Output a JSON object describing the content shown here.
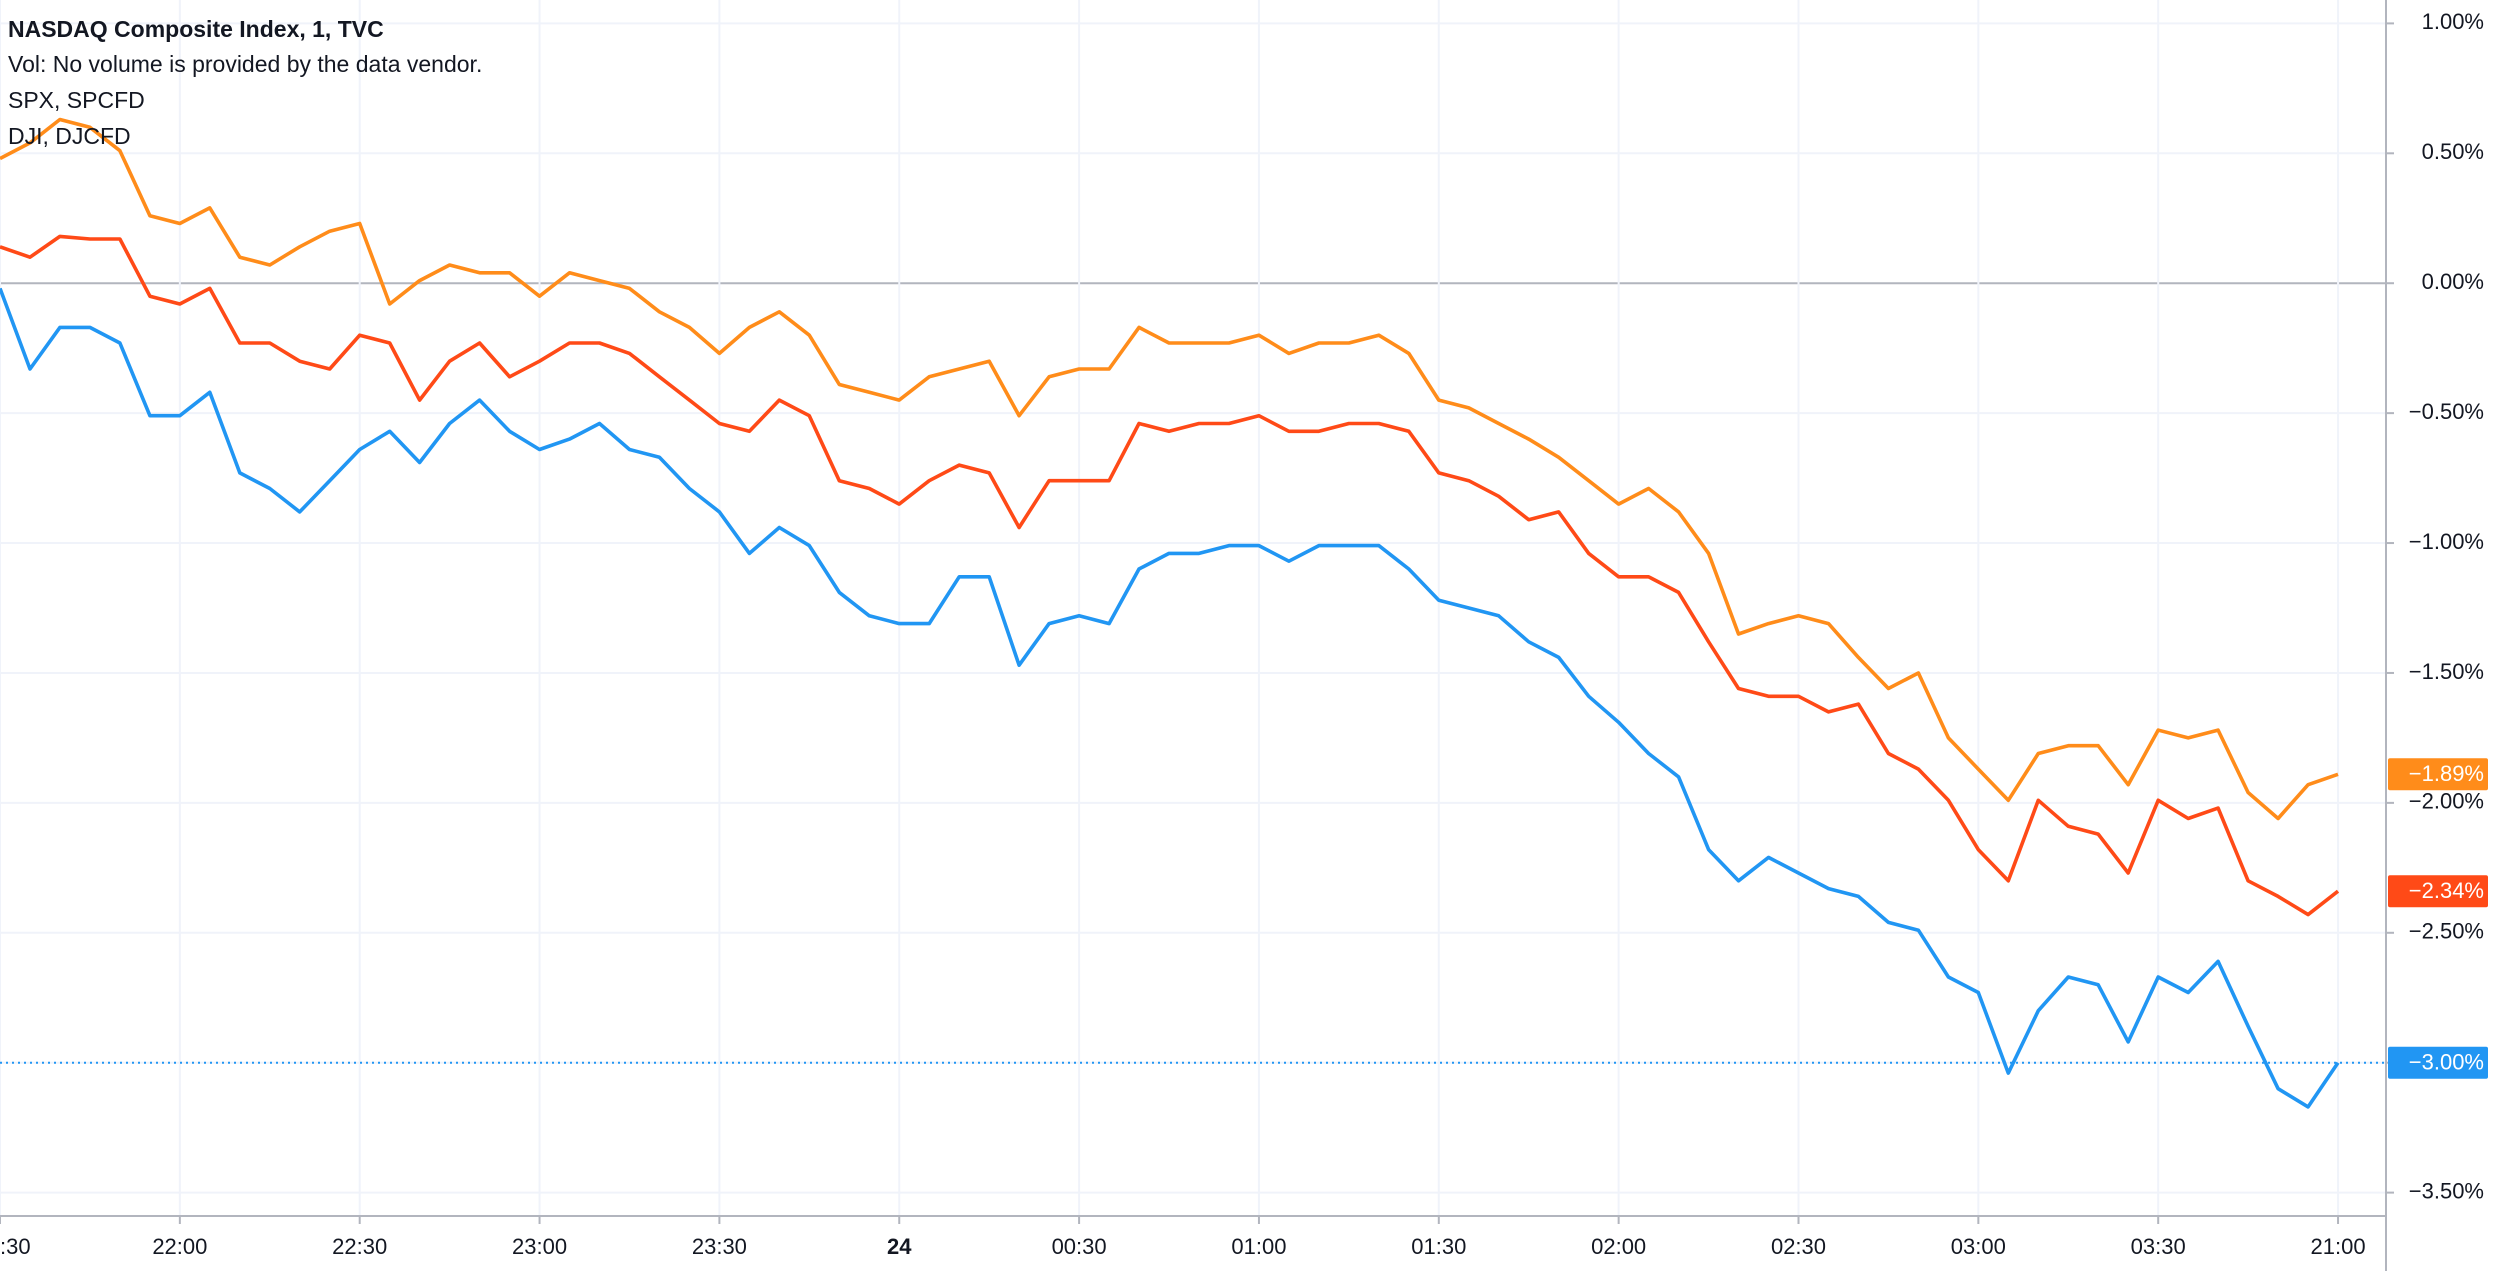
{
  "chart_data": {
    "type": "line",
    "volume_note": "Vol: No volume is provided by the data vendor.",
    "x": [
      0,
      5,
      10,
      15,
      20,
      25,
      30,
      35,
      40,
      45,
      50,
      55,
      60,
      65,
      70,
      75,
      80,
      85,
      90,
      95,
      100,
      105,
      110,
      115,
      120,
      125,
      130,
      135,
      140,
      145,
      150,
      155,
      160,
      165,
      170,
      175,
      180,
      185,
      190,
      195,
      200,
      205,
      210,
      215,
      220,
      225,
      230,
      235,
      240,
      245,
      250,
      255,
      260,
      265,
      270,
      275,
      280,
      285,
      290,
      295,
      300,
      305,
      310,
      315,
      320,
      325,
      330,
      335,
      340,
      345,
      350,
      355,
      360,
      365,
      370,
      375,
      380,
      385,
      390
    ],
    "xlim": [
      0,
      398
    ],
    "xticks": [
      {
        "value": 0,
        "label": ":30"
      },
      {
        "value": 30,
        "label": "22:00"
      },
      {
        "value": 60,
        "label": "22:30"
      },
      {
        "value": 90,
        "label": "23:00"
      },
      {
        "value": 120,
        "label": "23:30"
      },
      {
        "value": 150,
        "label": "24",
        "bold": true
      },
      {
        "value": 180,
        "label": "00:30"
      },
      {
        "value": 210,
        "label": "01:00"
      },
      {
        "value": 240,
        "label": "01:30"
      },
      {
        "value": 270,
        "label": "02:00"
      },
      {
        "value": 300,
        "label": "02:30"
      },
      {
        "value": 330,
        "label": "03:00"
      },
      {
        "value": 360,
        "label": "03:30"
      },
      {
        "value": 390,
        "label": "21:00"
      }
    ],
    "ylim": [
      -3.59,
      1.09
    ],
    "yticks": [
      {
        "value": 1,
        "label": "1.00%"
      },
      {
        "value": 0.5,
        "label": "0.50%"
      },
      {
        "value": 0,
        "label": "0.00%"
      },
      {
        "value": -0.5,
        "label": "−0.50%"
      },
      {
        "value": -1,
        "label": "−1.00%"
      },
      {
        "value": -1.5,
        "label": "−1.50%"
      },
      {
        "value": -2,
        "label": "−2.00%"
      },
      {
        "value": -2.5,
        "label": "−2.50%"
      },
      {
        "value": -3,
        "label": "−3.00%"
      },
      {
        "value": -3.5,
        "label": "−3.50%"
      }
    ],
    "grid": true,
    "series": [
      {
        "name": "NASDAQ Composite Index, 1, TVC",
        "color": "#2196f3",
        "last_label": "−3.00%",
        "values": [
          -0.02,
          -0.33,
          -0.17,
          -0.17,
          -0.23,
          -0.51,
          -0.51,
          -0.42,
          -0.73,
          -0.79,
          -0.88,
          -0.76,
          -0.64,
          -0.57,
          -0.69,
          -0.54,
          -0.45,
          -0.57,
          -0.64,
          -0.6,
          -0.54,
          -0.64,
          -0.67,
          -0.79,
          -0.88,
          -1.04,
          -0.94,
          -1.01,
          -1.19,
          -1.28,
          -1.31,
          -1.31,
          -1.13,
          -1.13,
          -1.47,
          -1.31,
          -1.28,
          -1.31,
          -1.1,
          -1.04,
          -1.04,
          -1.01,
          -1.01,
          -1.07,
          -1.01,
          -1.01,
          -1.01,
          -1.1,
          -1.22,
          -1.25,
          -1.28,
          -1.38,
          -1.44,
          -1.59,
          -1.69,
          -1.81,
          -1.9,
          -2.18,
          -2.3,
          -2.21,
          -2.27,
          -2.33,
          -2.36,
          -2.46,
          -2.49,
          -2.67,
          -2.73,
          -3.04,
          -2.8,
          -2.67,
          -2.7,
          -2.92,
          -2.67,
          -2.73,
          -2.61,
          -2.86,
          -3.1,
          -3.17,
          -3.0
        ]
      },
      {
        "name": "SPX, SPCFD",
        "color": "#ff4a17",
        "last_label": "−2.34%",
        "values": [
          0.14,
          0.1,
          0.18,
          0.17,
          0.17,
          -0.05,
          -0.08,
          -0.02,
          -0.23,
          -0.23,
          -0.3,
          -0.33,
          -0.2,
          -0.23,
          -0.45,
          -0.3,
          -0.23,
          -0.36,
          -0.3,
          -0.23,
          -0.23,
          -0.27,
          -0.36,
          -0.45,
          -0.54,
          -0.57,
          -0.45,
          -0.51,
          -0.76,
          -0.79,
          -0.85,
          -0.76,
          -0.7,
          -0.73,
          -0.94,
          -0.76,
          -0.76,
          -0.76,
          -0.54,
          -0.57,
          -0.54,
          -0.54,
          -0.51,
          -0.57,
          -0.57,
          -0.54,
          -0.54,
          -0.57,
          -0.73,
          -0.76,
          -0.82,
          -0.91,
          -0.88,
          -1.04,
          -1.13,
          -1.13,
          -1.19,
          -1.38,
          -1.56,
          -1.59,
          -1.59,
          -1.65,
          -1.62,
          -1.81,
          -1.87,
          -1.99,
          -2.18,
          -2.3,
          -1.99,
          -2.09,
          -2.12,
          -2.27,
          -1.99,
          -2.06,
          -2.02,
          -2.3,
          -2.36,
          -2.43,
          -2.34
        ]
      },
      {
        "name": "DJI, DJCFD",
        "color": "#ff8c1a",
        "last_label": "−1.89%",
        "values": [
          0.48,
          0.54,
          0.63,
          0.6,
          0.51,
          0.26,
          0.23,
          0.29,
          0.1,
          0.07,
          0.14,
          0.2,
          0.23,
          -0.08,
          0.01,
          0.07,
          0.04,
          0.04,
          -0.05,
          0.04,
          0.01,
          -0.02,
          -0.11,
          -0.17,
          -0.27,
          -0.17,
          -0.11,
          -0.2,
          -0.39,
          -0.42,
          -0.45,
          -0.36,
          -0.33,
          -0.3,
          -0.51,
          -0.36,
          -0.33,
          -0.33,
          -0.17,
          -0.23,
          -0.23,
          -0.23,
          -0.2,
          -0.27,
          -0.23,
          -0.23,
          -0.2,
          -0.27,
          -0.45,
          -0.48,
          -0.54,
          -0.6,
          -0.67,
          -0.76,
          -0.85,
          -0.79,
          -0.88,
          -1.04,
          -1.35,
          -1.31,
          -1.28,
          -1.31,
          -1.44,
          -1.56,
          -1.5,
          -1.75,
          -1.87,
          -1.99,
          -1.81,
          -1.78,
          -1.78,
          -1.93,
          -1.72,
          -1.75,
          -1.72,
          -1.96,
          -2.06,
          -1.93,
          -1.89
        ]
      }
    ]
  }
}
